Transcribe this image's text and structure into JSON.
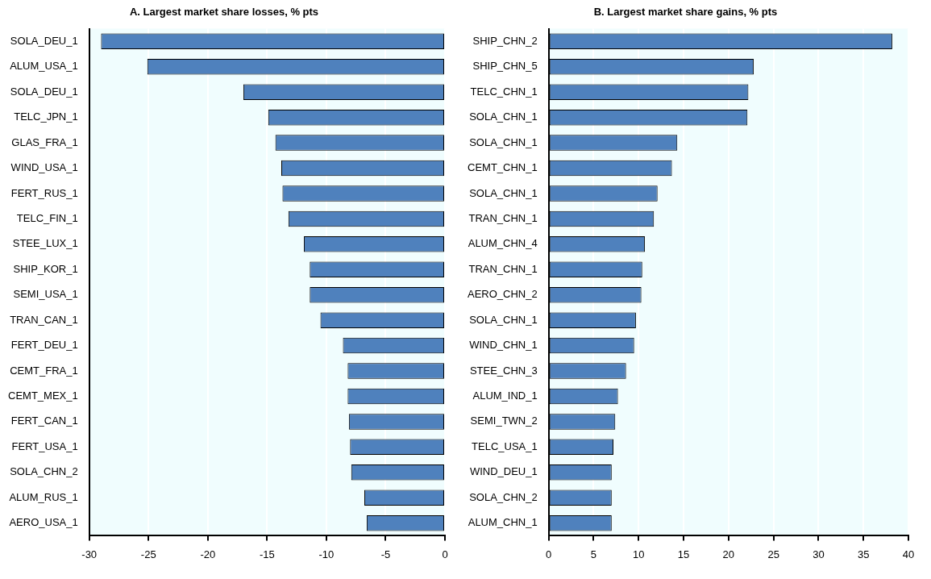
{
  "chart_data": [
    {
      "type": "bar",
      "orientation": "horizontal",
      "title": "A. Largest market share losses, % pts",
      "categories": [
        "SOLA_DEU_1",
        "ALUM_USA_1",
        "SOLA_DEU_1",
        "TELC_JPN_1",
        "GLAS_FRA_1",
        "WIND_USA_1",
        "FERT_RUS_1",
        "TELC_FIN_1",
        "STEE_LUX_1",
        "SHIP_KOR_1",
        "SEMI_USA_1",
        "TRAN_CAN_1",
        "FERT_DEU_1",
        "CEMT_FRA_1",
        "CEMT_MEX_1",
        "FERT_CAN_1",
        "FERT_USA_1",
        "SOLA_CHN_2",
        "ALUM_RUS_1",
        "AERO_USA_1"
      ],
      "values": [
        -29.0,
        -25.1,
        -17.0,
        -14.9,
        -14.3,
        -13.8,
        -13.7,
        -13.2,
        -11.9,
        -11.4,
        -11.4,
        -10.5,
        -8.6,
        -8.2,
        -8.2,
        -8.1,
        -8.0,
        -7.9,
        -6.8,
        -6.6
      ],
      "color": "#4f81bd",
      "xlim": [
        -30,
        0
      ],
      "xticks": [
        -30,
        -25,
        -20,
        -15,
        -10,
        -5,
        0
      ],
      "grid": "x"
    },
    {
      "type": "bar",
      "orientation": "horizontal",
      "title": "B. Largest market share gains, % pts",
      "categories": [
        "SHIP_CHN_2",
        "SHIP_CHN_5",
        "TELC_CHN_1",
        "SOLA_CHN_1",
        "SOLA_CHN_1",
        "CEMT_CHN_1",
        "SOLA_CHN_1",
        "TRAN_CHN_1",
        "ALUM_CHN_4",
        "TRAN_CHN_1",
        "AERO_CHN_2",
        "SOLA_CHN_1",
        "WIND_CHN_1",
        "STEE_CHN_3",
        "ALUM_IND_1",
        "SEMI_TWN_2",
        "TELC_USA_1",
        "WIND_DEU_1",
        "SOLA_CHN_2",
        "ALUM_CHN_1"
      ],
      "values": [
        38.2,
        22.8,
        22.2,
        22.1,
        14.3,
        13.7,
        12.1,
        11.7,
        10.7,
        10.4,
        10.3,
        9.7,
        9.5,
        8.6,
        7.7,
        7.4,
        7.2,
        7.0,
        7.0,
        7.0
      ],
      "color": "#4f81bd",
      "xlim": [
        0,
        40
      ],
      "xticks": [
        0,
        5,
        10,
        15,
        20,
        25,
        30,
        35,
        40
      ],
      "grid": "x"
    }
  ]
}
